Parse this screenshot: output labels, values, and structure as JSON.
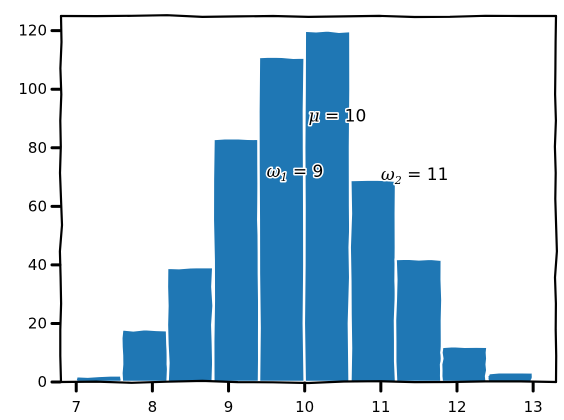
{
  "chart_data": {
    "type": "bar",
    "title": "",
    "xlabel": "",
    "ylabel": "",
    "bins": [
      {
        "start": 7.0,
        "end": 7.6,
        "value": 2
      },
      {
        "start": 7.6,
        "end": 8.2,
        "value": 18
      },
      {
        "start": 8.2,
        "end": 8.8,
        "value": 39
      },
      {
        "start": 8.8,
        "end": 9.4,
        "value": 83
      },
      {
        "start": 9.4,
        "end": 10.0,
        "value": 111
      },
      {
        "start": 10.0,
        "end": 10.6,
        "value": 120
      },
      {
        "start": 10.6,
        "end": 11.2,
        "value": 69
      },
      {
        "start": 11.2,
        "end": 11.8,
        "value": 42
      },
      {
        "start": 11.8,
        "end": 12.4,
        "value": 12
      },
      {
        "start": 12.4,
        "end": 13.0,
        "value": 3
      }
    ],
    "xlim": [
      6.8,
      13.3
    ],
    "ylim": [
      0,
      125
    ],
    "xticks": [
      "7",
      "8",
      "9",
      "10",
      "11",
      "12",
      "13"
    ],
    "yticks": [
      "0",
      "20",
      "40",
      "60",
      "80",
      "100",
      "120"
    ],
    "annotations": [
      {
        "x": 9.5,
        "y": 70,
        "greek": "ω",
        "sub": "1",
        "value": "9"
      },
      {
        "x": 10.05,
        "y": 89,
        "greek": "μ",
        "sub": "",
        "value": "10"
      },
      {
        "x": 11.0,
        "y": 69,
        "greek": "ω",
        "sub": "2",
        "value": "11"
      }
    ],
    "grid": false,
    "bar_color": "#1f77b4",
    "edge_color": "#ffffff"
  }
}
